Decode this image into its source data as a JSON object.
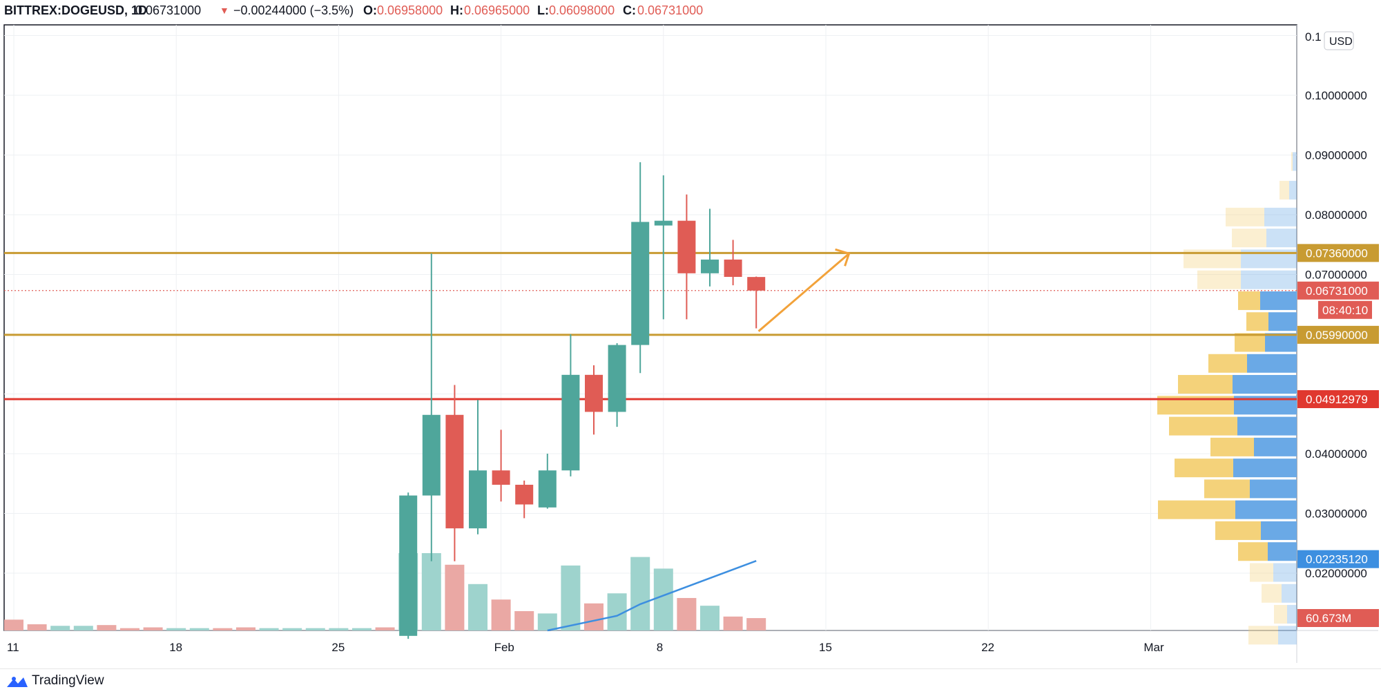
{
  "header": {
    "symbol": "BITTREX:DOGEUSD, 1D",
    "last": "0.06731000",
    "change_arrow": "▼",
    "change": "−0.00244000 (−3.5%)",
    "o_label": "O:",
    "o_value": "0.06958000",
    "h_label": "H:",
    "h_value": "0.06965000",
    "l_label": "L:",
    "l_value": "0.06098000",
    "c_label": "C:",
    "c_value": "0.06731000"
  },
  "footer": {
    "brand": "TradingView",
    "logo_icon": "tradingview-logo-icon"
  },
  "currency_badge": "USD",
  "colors": {
    "up": "#4fa69b",
    "down": "#e05c55",
    "vol_up": "#9ed3cd",
    "vol_down": "#eaa8a4",
    "support": "#c89b32",
    "resistance_red": "#e0382f",
    "arrow": "#f2a23a",
    "ma": "#3d8fe0",
    "vp_up": "#f4d27a",
    "vp_down": "#6aa9e6"
  },
  "chart_data": {
    "type": "candlestick",
    "symbol": "BITTREX:DOGEUSD",
    "interval": "1D",
    "y_axis": {
      "ticks": [
        "0.10000000",
        "0.09000000",
        "0.08000000",
        "0.07000000",
        "0.04000000",
        "0.03000000",
        "0.02000000"
      ],
      "top_tick_partial": "0.1"
    },
    "x_axis": {
      "ticks": [
        "11",
        "18",
        "25",
        "Feb",
        "8",
        "15",
        "22",
        "Mar"
      ]
    },
    "candles": [
      {
        "i": 17,
        "o": 0.0095,
        "h": 0.0335,
        "l": 0.009,
        "c": 0.033
      },
      {
        "i": 18,
        "o": 0.033,
        "h": 0.0735,
        "l": 0.022,
        "c": 0.0465
      },
      {
        "i": 19,
        "o": 0.0465,
        "h": 0.0515,
        "l": 0.022,
        "c": 0.0275
      },
      {
        "i": 20,
        "o": 0.0275,
        "h": 0.049,
        "l": 0.0265,
        "c": 0.0372
      },
      {
        "i": 21,
        "o": 0.0372,
        "h": 0.044,
        "l": 0.032,
        "c": 0.0348
      },
      {
        "i": 22,
        "o": 0.0348,
        "h": 0.0355,
        "l": 0.0292,
        "c": 0.0315
      },
      {
        "i": 23,
        "o": 0.031,
        "h": 0.04,
        "l": 0.0308,
        "c": 0.0372
      },
      {
        "i": 24,
        "o": 0.0372,
        "h": 0.06,
        "l": 0.0362,
        "c": 0.0532
      },
      {
        "i": 25,
        "o": 0.0532,
        "h": 0.0548,
        "l": 0.0432,
        "c": 0.047
      },
      {
        "i": 26,
        "o": 0.047,
        "h": 0.0585,
        "l": 0.0445,
        "c": 0.0582
      },
      {
        "i": 27,
        "o": 0.0582,
        "h": 0.0888,
        "l": 0.0535,
        "c": 0.0788
      },
      {
        "i": 28,
        "o": 0.0782,
        "h": 0.0866,
        "l": 0.0625,
        "c": 0.079
      },
      {
        "i": 29,
        "o": 0.079,
        "h": 0.0834,
        "l": 0.0625,
        "c": 0.0702
      },
      {
        "i": 30,
        "o": 0.0702,
        "h": 0.081,
        "l": 0.068,
        "c": 0.0725
      },
      {
        "i": 31,
        "o": 0.0725,
        "h": 0.0758,
        "l": 0.0682,
        "c": 0.0696
      },
      {
        "i": 32,
        "o": 0.06958,
        "h": 0.06965,
        "l": 0.06098,
        "c": 0.06731
      }
    ],
    "volume": {
      "max_label": "60.673M",
      "bars": [
        {
          "i": 0,
          "v": 0.14,
          "up": false
        },
        {
          "i": 1,
          "v": 0.08,
          "up": false
        },
        {
          "i": 2,
          "v": 0.06,
          "up": true
        },
        {
          "i": 3,
          "v": 0.06,
          "up": true
        },
        {
          "i": 4,
          "v": 0.07,
          "up": false
        },
        {
          "i": 5,
          "v": 0.03,
          "up": false
        },
        {
          "i": 6,
          "v": 0.04,
          "up": false
        },
        {
          "i": 7,
          "v": 0.03,
          "up": true
        },
        {
          "i": 8,
          "v": 0.03,
          "up": true
        },
        {
          "i": 9,
          "v": 0.03,
          "up": false
        },
        {
          "i": 10,
          "v": 0.04,
          "up": false
        },
        {
          "i": 11,
          "v": 0.03,
          "up": true
        },
        {
          "i": 12,
          "v": 0.03,
          "up": true
        },
        {
          "i": 13,
          "v": 0.03,
          "up": true
        },
        {
          "i": 14,
          "v": 0.03,
          "up": true
        },
        {
          "i": 15,
          "v": 0.03,
          "up": true
        },
        {
          "i": 16,
          "v": 0.04,
          "up": false
        },
        {
          "i": 17,
          "v": 1.0,
          "up": true
        },
        {
          "i": 18,
          "v": 1.0,
          "up": true
        },
        {
          "i": 19,
          "v": 0.85,
          "up": false
        },
        {
          "i": 20,
          "v": 0.6,
          "up": true
        },
        {
          "i": 21,
          "v": 0.4,
          "up": false
        },
        {
          "i": 22,
          "v": 0.25,
          "up": false
        },
        {
          "i": 23,
          "v": 0.22,
          "up": true
        },
        {
          "i": 24,
          "v": 0.84,
          "up": true
        },
        {
          "i": 25,
          "v": 0.35,
          "up": false
        },
        {
          "i": 26,
          "v": 0.48,
          "up": true
        },
        {
          "i": 27,
          "v": 0.95,
          "up": true
        },
        {
          "i": 28,
          "v": 0.8,
          "up": true
        },
        {
          "i": 29,
          "v": 0.42,
          "up": false
        },
        {
          "i": 30,
          "v": 0.32,
          "up": true
        },
        {
          "i": 31,
          "v": 0.18,
          "up": false
        },
        {
          "i": 32,
          "v": 0.16,
          "up": false
        }
      ],
      "ma": [
        {
          "i": 23,
          "v": 0.0
        },
        {
          "i": 26,
          "v": 0.19
        },
        {
          "i": 27,
          "v": 0.34
        },
        {
          "i": 32,
          "v": 0.9
        }
      ]
    },
    "horizontal_lines": [
      {
        "price": 0.0736,
        "label": "0.07360000",
        "kind": "support"
      },
      {
        "price": 0.0599,
        "label": "0.05990000",
        "kind": "support"
      },
      {
        "price": 0.04913,
        "label": "0.04912979",
        "kind": "resistance_red"
      }
    ],
    "price_labels": {
      "last_price": "0.06731000",
      "countdown": "08:40:10",
      "blue_level_price": 0.02235,
      "blue_level": "0.02235120"
    },
    "trend_arrow": {
      "from": {
        "i": 32.1,
        "p": 0.0605
      },
      "to": {
        "i": 36.0,
        "p": 0.0735
      }
    },
    "volume_profile": [
      {
        "p": 0.0888,
        "up": 0.2,
        "down": 0.6,
        "faded": true
      },
      {
        "p": 0.084,
        "up": 1.4,
        "down": 1.1,
        "faded": true
      },
      {
        "p": 0.0795,
        "up": 5.6,
        "down": 4.7,
        "faded": true
      },
      {
        "p": 0.076,
        "up": 5.0,
        "down": 4.4,
        "faded": true
      },
      {
        "p": 0.0725,
        "up": 8.3,
        "down": 8.1,
        "faded": true
      },
      {
        "p": 0.069,
        "up": 6.3,
        "down": 8.1,
        "faded": true
      },
      {
        "p": 0.0655,
        "up": 3.2,
        "down": 5.3,
        "faded": false
      },
      {
        "p": 0.062,
        "up": 3.2,
        "down": 4.1,
        "faded": false
      },
      {
        "p": 0.0585,
        "up": 4.4,
        "down": 4.6,
        "faded": false
      },
      {
        "p": 0.055,
        "up": 5.6,
        "down": 7.2,
        "faded": false
      },
      {
        "p": 0.0515,
        "up": 7.9,
        "down": 9.3,
        "faded": false
      },
      {
        "p": 0.048,
        "up": 11.1,
        "down": 9.1,
        "faded": false
      },
      {
        "p": 0.0445,
        "up": 9.9,
        "down": 8.6,
        "faded": false
      },
      {
        "p": 0.041,
        "up": 6.3,
        "down": 6.2,
        "faded": false
      },
      {
        "p": 0.0375,
        "up": 8.5,
        "down": 9.2,
        "faded": false
      },
      {
        "p": 0.034,
        "up": 6.6,
        "down": 6.8,
        "faded": false
      },
      {
        "p": 0.0305,
        "up": 11.2,
        "down": 8.9,
        "faded": false
      },
      {
        "p": 0.027,
        "up": 6.6,
        "down": 5.2,
        "faded": false
      },
      {
        "p": 0.0235,
        "up": 4.3,
        "down": 4.2,
        "faded": false
      },
      {
        "p": 0.02,
        "up": 3.4,
        "down": 3.4,
        "faded": true
      },
      {
        "p": 0.0165,
        "up": 2.9,
        "down": 2.2,
        "faded": true
      },
      {
        "p": 0.013,
        "up": 1.9,
        "down": 1.4,
        "faded": true
      },
      {
        "p": 0.0095,
        "up": 4.3,
        "down": 2.7,
        "faded": true
      }
    ]
  }
}
